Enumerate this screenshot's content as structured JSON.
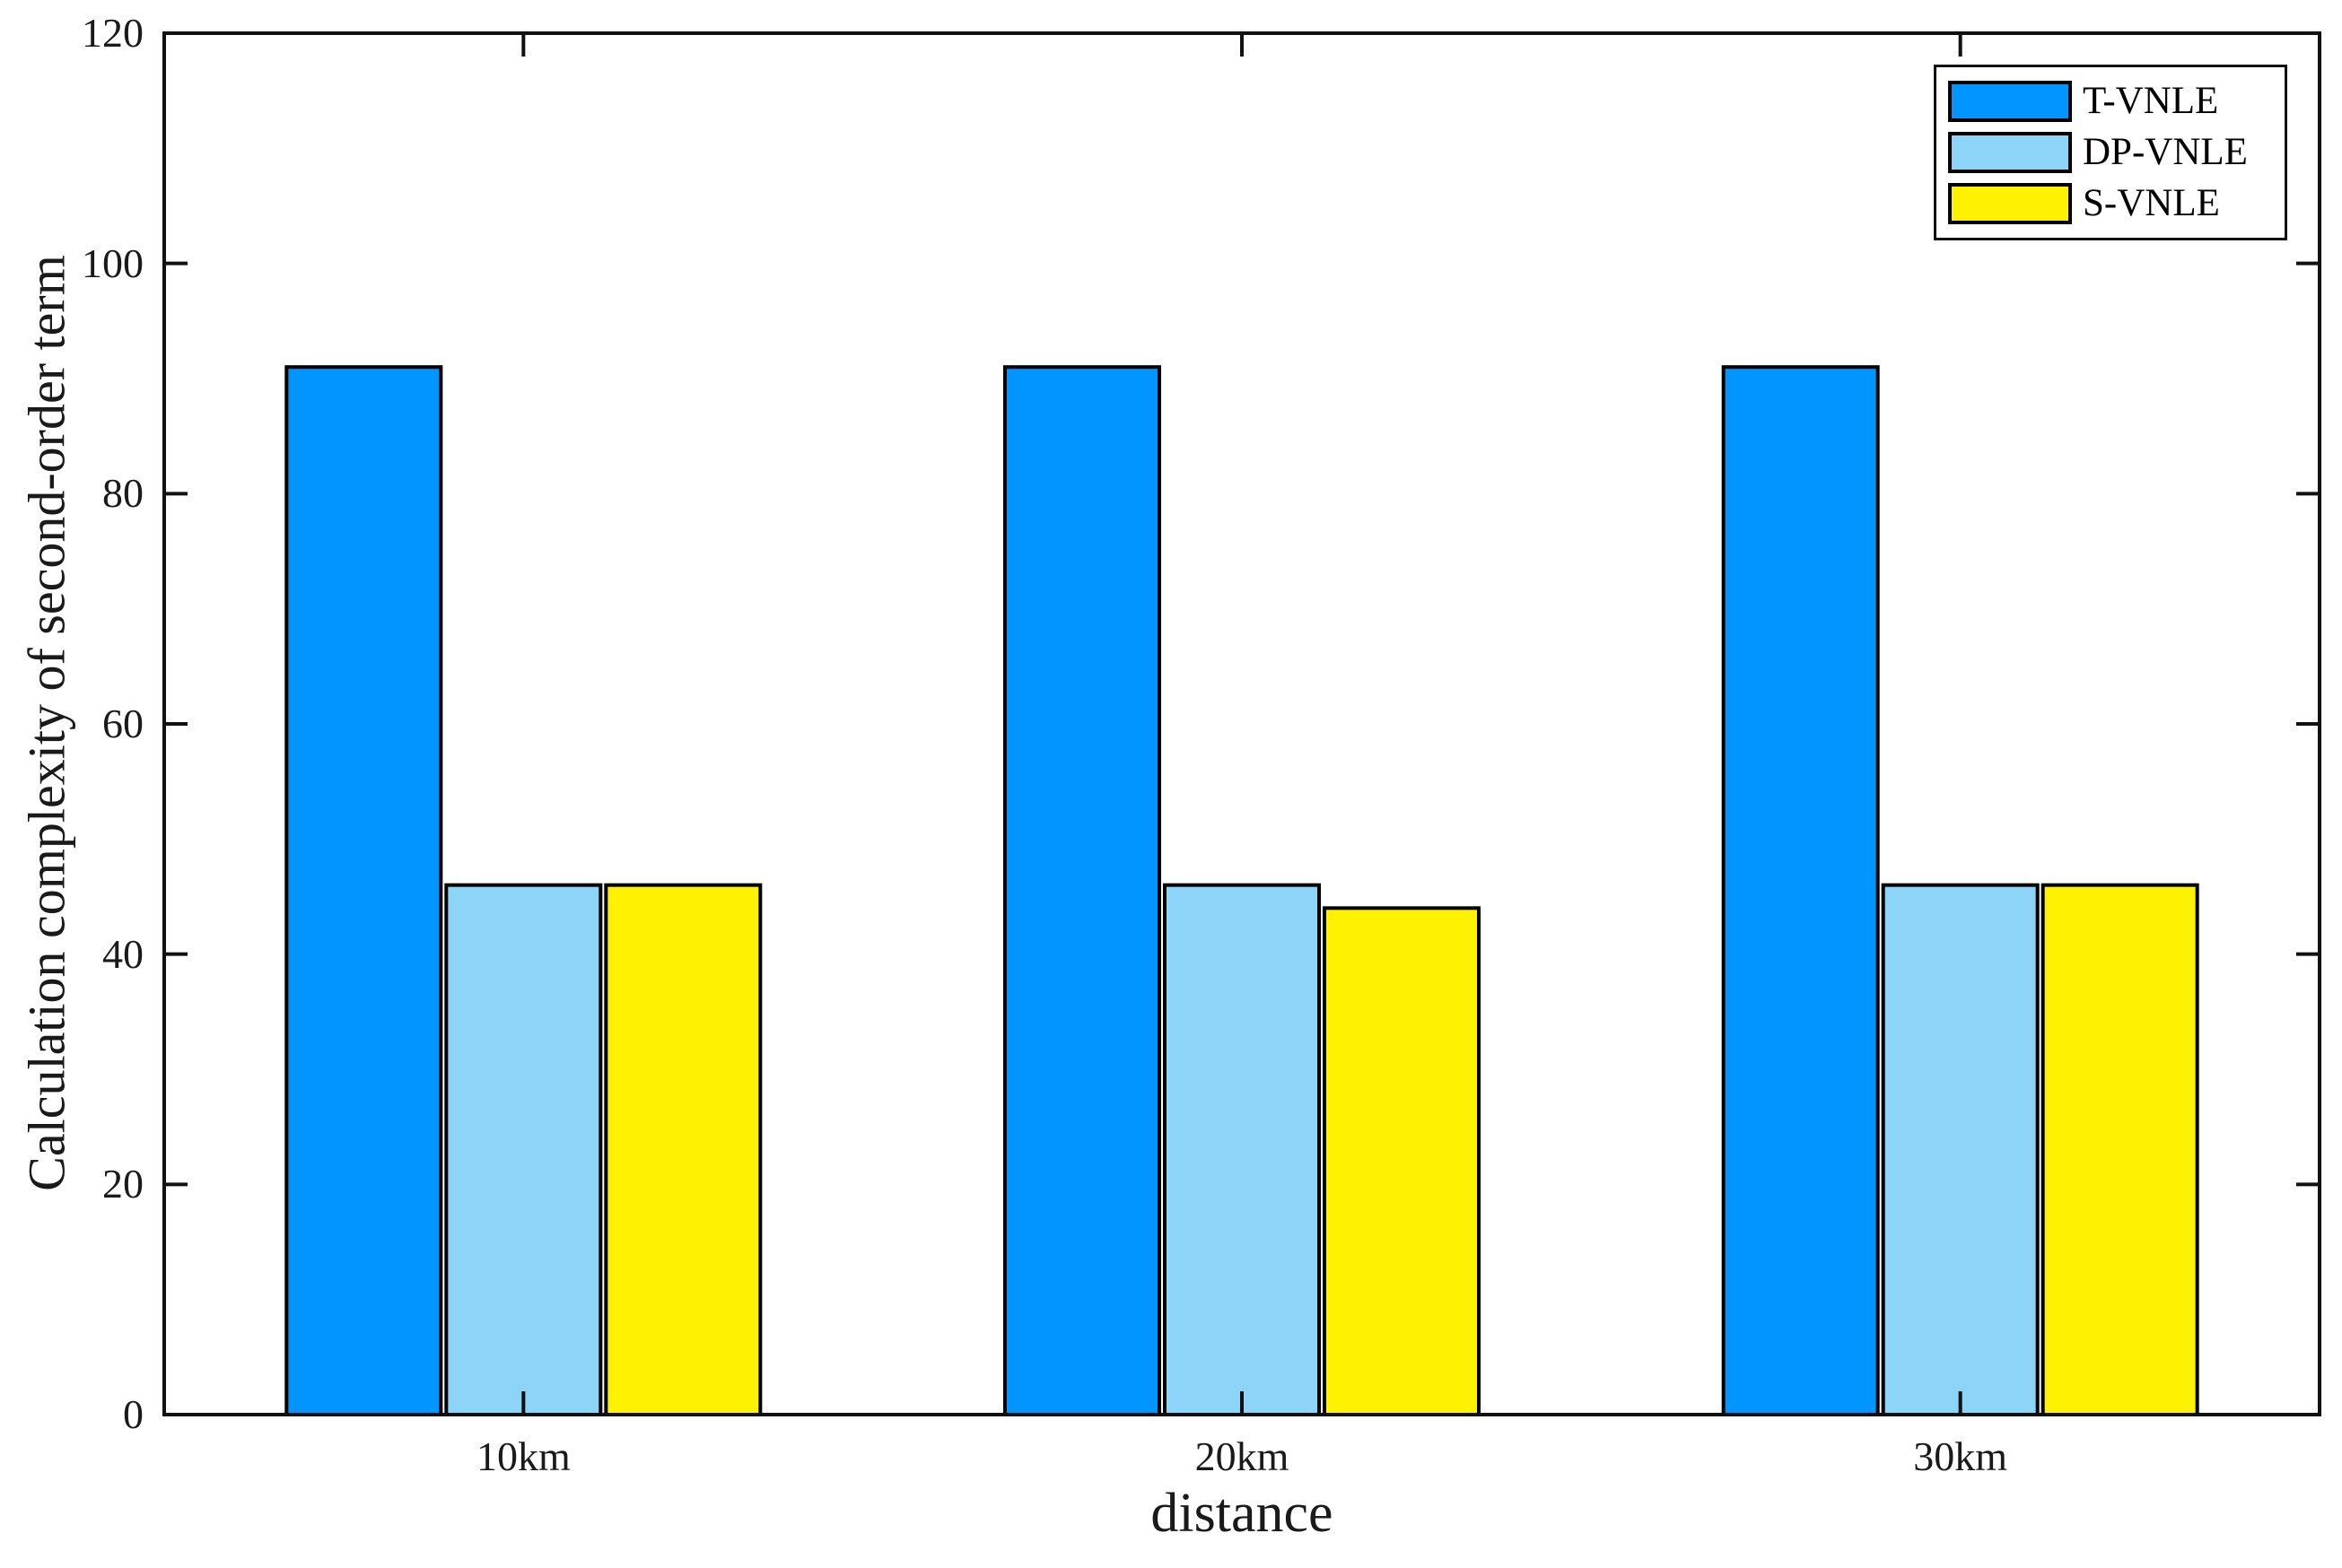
{
  "chart_data": {
    "type": "bar",
    "title": "",
    "xlabel": "distance",
    "ylabel": "Calculation complexity of second-order term",
    "categories": [
      "10km",
      "20km",
      "30km"
    ],
    "series": [
      {
        "name": "T-VNLE",
        "color": "#0095FF",
        "values": [
          91,
          91,
          91
        ]
      },
      {
        "name": "DP-VNLE",
        "color": "#8CD4F8",
        "values": [
          46,
          46,
          46
        ]
      },
      {
        "name": "S-VNLE",
        "color": "#FFF200",
        "values": [
          46,
          44,
          46
        ]
      }
    ],
    "ylim": [
      0,
      120
    ],
    "yticks": [
      0,
      20,
      40,
      60,
      80,
      100,
      120
    ],
    "bar_edge_color": "#000000",
    "axis_color": "#111111",
    "grid": false,
    "legend_position": "top-right-inside"
  }
}
